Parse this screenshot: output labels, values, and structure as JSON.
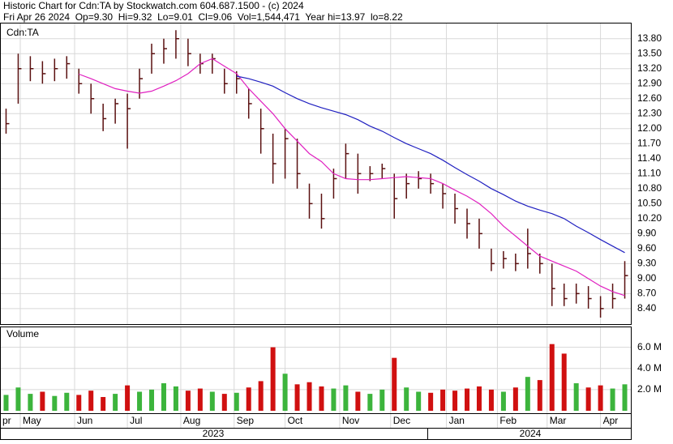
{
  "header": {
    "title": "Historic Chart for Cdn:TA by Stockwatch.com 604.687.1500 - (c) 2024",
    "quote": "Fri Apr 26 2024  Op=9.30  Hi=9.32  Lo=9.01  Cl=9.06  Vol=1,544,471  Year hi=13.97  lo=8.22"
  },
  "chart_data": {
    "type": "ohlc",
    "price_label": "Cdn:TA",
    "volume_label": "Volume",
    "xlim": [
      0,
      52
    ],
    "xticks": [
      {
        "value": 0,
        "label": "pr"
      },
      {
        "value": 1.67,
        "label": "May"
      },
      {
        "value": 6.15,
        "label": "Jun"
      },
      {
        "value": 10.5,
        "label": "Jul"
      },
      {
        "value": 14.9,
        "label": "Aug"
      },
      {
        "value": 19.3,
        "label": "Sep"
      },
      {
        "value": 23.5,
        "label": "Oct"
      },
      {
        "value": 28.0,
        "label": "Nov"
      },
      {
        "value": 32.2,
        "label": "Dec"
      },
      {
        "value": 36.8,
        "label": "Jan"
      },
      {
        "value": 41.0,
        "label": "Feb"
      },
      {
        "value": 45.1,
        "label": "Mar"
      },
      {
        "value": 49.5,
        "label": "Apr"
      }
    ],
    "years": [
      "2023",
      "2024"
    ],
    "ylim": [
      8.09,
      14.12
    ],
    "yticks": [
      {
        "value": 13.8,
        "label": "13.80"
      },
      {
        "value": 13.5,
        "label": "13.50"
      },
      {
        "value": 13.2,
        "label": "13.20"
      },
      {
        "value": 12.9,
        "label": "12.90"
      },
      {
        "value": 12.6,
        "label": "12.60"
      },
      {
        "value": 12.3,
        "label": "12.30"
      },
      {
        "value": 12.0,
        "label": "12.00"
      },
      {
        "value": 11.7,
        "label": "11.70"
      },
      {
        "value": 11.4,
        "label": "11.40"
      },
      {
        "value": 11.1,
        "label": "11.10"
      },
      {
        "value": 10.8,
        "label": "10.80"
      },
      {
        "value": 10.5,
        "label": "10.50"
      },
      {
        "value": 10.2,
        "label": "10.20"
      },
      {
        "value": 9.9,
        "label": "9.90"
      },
      {
        "value": 9.6,
        "label": "9.60"
      },
      {
        "value": 9.3,
        "label": "9.30"
      },
      {
        "value": 9.0,
        "label": "9.00"
      },
      {
        "value": 8.7,
        "label": "8.70"
      },
      {
        "value": 8.4,
        "label": "8.40"
      }
    ],
    "y2lim": [
      0,
      7.5
    ],
    "y2ticks": [
      {
        "value": 6,
        "label": "6.0 M"
      },
      {
        "value": 4,
        "label": "4.0 M"
      },
      {
        "value": 2,
        "label": "2.0 M"
      }
    ],
    "grid": true,
    "bar_color": "#5a1010",
    "up_color": "#3cb43c",
    "down_color": "#d01010",
    "high": [
      12.4,
      13.5,
      13.45,
      13.35,
      13.4,
      13.45,
      13.2,
      12.9,
      12.5,
      12.6,
      12.7,
      13.2,
      13.7,
      13.8,
      13.97,
      13.8,
      13.5,
      13.5,
      13.2,
      13.15,
      12.8,
      12.4,
      11.9,
      12.0,
      11.8,
      10.9,
      10.7,
      11.2,
      11.7,
      11.5,
      11.25,
      11.3,
      11.1,
      11.1,
      11.15,
      11.1,
      10.9,
      10.7,
      10.4,
      10.2,
      9.6,
      9.55,
      9.5,
      10.0,
      9.5,
      9.3,
      8.9,
      8.9,
      8.85,
      8.65,
      8.9,
      9.35
    ],
    "low": [
      11.9,
      12.5,
      12.95,
      12.9,
      12.95,
      13.0,
      12.7,
      12.3,
      11.95,
      12.1,
      11.6,
      12.6,
      13.1,
      13.3,
      13.4,
      13.25,
      13.1,
      13.1,
      12.7,
      12.7,
      12.2,
      11.5,
      10.9,
      11.0,
      10.8,
      10.2,
      10.0,
      10.6,
      11.0,
      10.7,
      10.95,
      11.0,
      10.2,
      10.6,
      10.8,
      10.7,
      10.4,
      10.1,
      9.8,
      9.6,
      9.15,
      9.2,
      9.15,
      9.2,
      9.1,
      8.45,
      8.45,
      8.5,
      8.4,
      8.22,
      8.4,
      8.6
    ],
    "close": [
      12.1,
      13.2,
      13.2,
      13.1,
      13.2,
      13.3,
      12.9,
      12.6,
      12.2,
      12.5,
      12.4,
      13.0,
      13.5,
      13.6,
      13.8,
      13.5,
      13.3,
      13.4,
      12.9,
      13.0,
      12.5,
      12.0,
      11.3,
      11.8,
      11.1,
      10.5,
      10.2,
      11.0,
      11.5,
      11.1,
      11.1,
      11.2,
      10.6,
      10.9,
      11.0,
      10.9,
      10.7,
      10.4,
      10.1,
      9.9,
      9.3,
      9.4,
      9.3,
      9.5,
      9.3,
      8.8,
      8.6,
      8.7,
      8.6,
      8.4,
      8.6,
      9.06
    ],
    "volume": [
      1.5,
      2.2,
      1.6,
      1.8,
      1.4,
      1.7,
      1.5,
      1.9,
      1.3,
      1.6,
      2.4,
      1.8,
      2.0,
      2.6,
      2.3,
      1.9,
      2.1,
      1.8,
      1.6,
      1.7,
      2.2,
      2.8,
      6.0,
      3.5,
      2.5,
      2.7,
      2.3,
      2.1,
      2.4,
      1.8,
      1.6,
      2.0,
      5.0,
      2.2,
      1.8,
      1.7,
      2.0,
      1.9,
      2.1,
      2.3,
      2.0,
      1.8,
      2.2,
      3.2,
      2.9,
      6.3,
      5.4,
      2.6,
      2.2,
      2.4,
      2.1,
      2.5
    ],
    "series": [
      {
        "color": "#e020c0",
        "values": [
          null,
          null,
          null,
          null,
          null,
          null,
          13.09,
          13.0,
          12.9,
          12.8,
          12.75,
          12.71,
          12.75,
          12.85,
          12.96,
          13.1,
          13.3,
          13.4,
          13.25,
          13.1,
          12.8,
          12.55,
          12.3,
          12.0,
          11.75,
          11.5,
          11.34,
          11.1,
          11.0,
          10.98,
          10.98,
          11.0,
          11.02,
          11.04,
          11.02,
          11.0,
          10.9,
          10.77,
          10.65,
          10.5,
          10.3,
          10.05,
          9.85,
          9.65,
          9.45,
          9.35,
          9.25,
          9.15,
          9.0,
          8.85,
          8.74,
          8.66
        ]
      },
      {
        "color": "#2020c0",
        "values": [
          null,
          null,
          null,
          null,
          null,
          null,
          null,
          null,
          null,
          null,
          null,
          null,
          null,
          null,
          null,
          null,
          null,
          null,
          null,
          13.05,
          13.0,
          12.93,
          12.85,
          12.72,
          12.6,
          12.5,
          12.42,
          12.35,
          12.28,
          12.18,
          12.05,
          11.95,
          11.82,
          11.7,
          11.6,
          11.5,
          11.37,
          11.22,
          11.08,
          10.95,
          10.8,
          10.68,
          10.55,
          10.45,
          10.37,
          10.3,
          10.2,
          10.05,
          9.92,
          9.78,
          9.65,
          9.52
        ]
      }
    ]
  }
}
